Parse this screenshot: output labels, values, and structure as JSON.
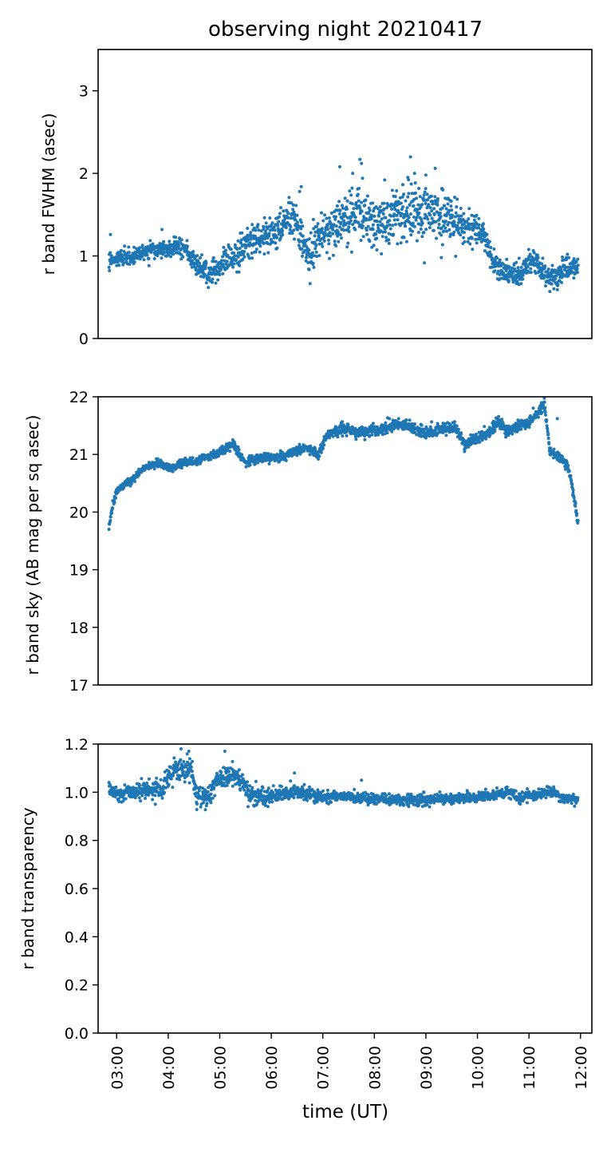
{
  "title": "observing night 20210417",
  "xlabel": "time (UT)",
  "x_tick_labels": [
    "03:00",
    "04:00",
    "05:00",
    "06:00",
    "07:00",
    "08:00",
    "09:00",
    "10:00",
    "11:00",
    "12:00"
  ],
  "x_tick_values": [
    3,
    4,
    5,
    6,
    7,
    8,
    9,
    10,
    11,
    12
  ],
  "xlim": [
    2.64,
    12.22
  ],
  "marker_color": "#1f77b4",
  "chart_data": [
    {
      "type": "scatter",
      "ylabel": "r band FWHM (asec)",
      "ylim": [
        0,
        3.5
      ],
      "y_ticks": [
        0,
        1,
        2,
        3
      ],
      "y_tick_labels": [
        "0",
        "1",
        "2",
        "3"
      ],
      "grid": false,
      "profile": [
        [
          2.85,
          0.95
        ],
        [
          3.0,
          0.98
        ],
        [
          3.3,
          1.0
        ],
        [
          3.5,
          1.05
        ],
        [
          3.8,
          1.05
        ],
        [
          4.0,
          1.08
        ],
        [
          4.3,
          1.1
        ],
        [
          4.55,
          0.9
        ],
        [
          4.8,
          0.78
        ],
        [
          4.9,
          0.82
        ],
        [
          5.1,
          0.95
        ],
        [
          5.4,
          1.05
        ],
        [
          5.6,
          1.2
        ],
        [
          6.0,
          1.25
        ],
        [
          6.2,
          1.35
        ],
        [
          6.45,
          1.5
        ],
        [
          6.6,
          1.2
        ],
        [
          6.75,
          0.95
        ],
        [
          6.9,
          1.25
        ],
        [
          7.2,
          1.35
        ],
        [
          7.5,
          1.4
        ],
        [
          7.8,
          1.5
        ],
        [
          8.0,
          1.42
        ],
        [
          8.3,
          1.45
        ],
        [
          8.6,
          1.5
        ],
        [
          8.9,
          1.5
        ],
        [
          9.2,
          1.55
        ],
        [
          9.5,
          1.45
        ],
        [
          9.8,
          1.35
        ],
        [
          10.1,
          1.3
        ],
        [
          10.3,
          0.95
        ],
        [
          10.5,
          0.82
        ],
        [
          10.7,
          0.78
        ],
        [
          10.85,
          0.78
        ],
        [
          11.0,
          0.95
        ],
        [
          11.15,
          0.95
        ],
        [
          11.3,
          0.78
        ],
        [
          11.5,
          0.72
        ],
        [
          11.7,
          0.85
        ],
        [
          11.95,
          0.85
        ]
      ],
      "scatter_sd": [
        [
          2.85,
          0.05
        ],
        [
          4.5,
          0.06
        ],
        [
          5.5,
          0.1
        ],
        [
          7.0,
          0.12
        ],
        [
          8.0,
          0.17
        ],
        [
          9.5,
          0.15
        ],
        [
          10.2,
          0.08
        ],
        [
          12.0,
          0.06
        ]
      ],
      "outliers": [
        [
          2.88,
          1.26
        ],
        [
          3.88,
          1.32
        ],
        [
          7.33,
          2.08
        ],
        [
          7.72,
          2.17
        ],
        [
          7.75,
          2.12
        ],
        [
          8.7,
          2.2
        ],
        [
          8.78,
          2.0
        ],
        [
          9.18,
          2.06
        ],
        [
          8.65,
          1.95
        ],
        [
          8.2,
          1.92
        ],
        [
          9.0,
          1.98
        ],
        [
          9.3,
          0.98
        ],
        [
          9.82,
          1.33
        ],
        [
          7.58,
          2.0
        ],
        [
          6.58,
          1.84
        ],
        [
          6.55,
          1.78
        ]
      ]
    },
    {
      "type": "scatter",
      "ylabel": "r band sky (AB mag per sq asec)",
      "ylim": [
        17,
        22
      ],
      "y_ticks": [
        17,
        18,
        19,
        20,
        21,
        22
      ],
      "y_tick_labels": [
        "17",
        "18",
        "19",
        "20",
        "21",
        "22"
      ],
      "grid": false,
      "profile": [
        [
          2.85,
          19.75
        ],
        [
          2.92,
          20.1
        ],
        [
          3.0,
          20.35
        ],
        [
          3.1,
          20.45
        ],
        [
          3.3,
          20.55
        ],
        [
          3.5,
          20.75
        ],
        [
          3.8,
          20.85
        ],
        [
          4.0,
          20.75
        ],
        [
          4.3,
          20.85
        ],
        [
          4.6,
          20.9
        ],
        [
          4.9,
          21.0
        ],
        [
          5.1,
          21.1
        ],
        [
          5.25,
          21.18
        ],
        [
          5.5,
          20.85
        ],
        [
          5.8,
          20.95
        ],
        [
          6.2,
          20.95
        ],
        [
          6.5,
          21.05
        ],
        [
          6.7,
          21.12
        ],
        [
          6.9,
          21.0
        ],
        [
          7.1,
          21.35
        ],
        [
          7.4,
          21.45
        ],
        [
          7.6,
          21.4
        ],
        [
          7.8,
          21.38
        ],
        [
          8.2,
          21.45
        ],
        [
          8.5,
          21.55
        ],
        [
          8.8,
          21.45
        ],
        [
          9.0,
          21.35
        ],
        [
          9.3,
          21.45
        ],
        [
          9.6,
          21.45
        ],
        [
          9.75,
          21.15
        ],
        [
          10.0,
          21.3
        ],
        [
          10.2,
          21.35
        ],
        [
          10.4,
          21.55
        ],
        [
          10.6,
          21.4
        ],
        [
          10.8,
          21.5
        ],
        [
          11.0,
          21.55
        ],
        [
          11.2,
          21.75
        ],
        [
          11.3,
          21.9
        ],
        [
          11.4,
          21.05
        ],
        [
          11.6,
          20.95
        ],
        [
          11.75,
          20.8
        ],
        [
          11.85,
          20.4
        ],
        [
          11.95,
          19.8
        ]
      ],
      "scatter_sd": [
        [
          2.85,
          0.03
        ],
        [
          6.0,
          0.04
        ],
        [
          8.0,
          0.05
        ],
        [
          11.0,
          0.05
        ],
        [
          12.0,
          0.04
        ]
      ],
      "outliers": [
        [
          11.55,
          21.62
        ],
        [
          9.75,
          21.05
        ],
        [
          10.55,
          21.3
        ]
      ]
    },
    {
      "type": "scatter",
      "ylabel": "r band transparency",
      "ylim": [
        0.0,
        1.2
      ],
      "y_ticks": [
        0.0,
        0.2,
        0.4,
        0.6,
        0.8,
        1.0,
        1.2
      ],
      "y_tick_labels": [
        "0.0",
        "0.2",
        "0.4",
        "0.6",
        "0.8",
        "1.0",
        "1.2"
      ],
      "grid": false,
      "profile": [
        [
          2.85,
          1.01
        ],
        [
          3.1,
          0.99
        ],
        [
          3.2,
          1.0
        ],
        [
          3.5,
          1.01
        ],
        [
          3.9,
          1.01
        ],
        [
          4.0,
          1.07
        ],
        [
          4.2,
          1.09
        ],
        [
          4.45,
          1.1
        ],
        [
          4.55,
          0.98
        ],
        [
          4.8,
          0.98
        ],
        [
          4.95,
          1.05
        ],
        [
          5.2,
          1.07
        ],
        [
          5.45,
          1.05
        ],
        [
          5.55,
          0.99
        ],
        [
          6.0,
          0.98
        ],
        [
          6.5,
          1.0
        ],
        [
          7.0,
          0.98
        ],
        [
          7.5,
          0.98
        ],
        [
          8.0,
          0.97
        ],
        [
          8.5,
          0.97
        ],
        [
          9.0,
          0.97
        ],
        [
          9.5,
          0.97
        ],
        [
          10.0,
          0.98
        ],
        [
          10.4,
          0.99
        ],
        [
          10.6,
          1.0
        ],
        [
          10.8,
          0.98
        ],
        [
          11.2,
          0.99
        ],
        [
          11.4,
          1.01
        ],
        [
          11.6,
          0.98
        ],
        [
          11.95,
          0.97
        ]
      ],
      "scatter_sd": [
        [
          2.85,
          0.012
        ],
        [
          4.0,
          0.025
        ],
        [
          5.5,
          0.02
        ],
        [
          7.0,
          0.012
        ],
        [
          12.0,
          0.01
        ]
      ],
      "outliers": [
        [
          4.25,
          1.18
        ],
        [
          4.4,
          1.17
        ],
        [
          5.1,
          1.17
        ],
        [
          6.45,
          1.08
        ],
        [
          7.75,
          1.05
        ],
        [
          3.75,
          0.95
        ],
        [
          5.55,
          0.94
        ]
      ]
    }
  ]
}
